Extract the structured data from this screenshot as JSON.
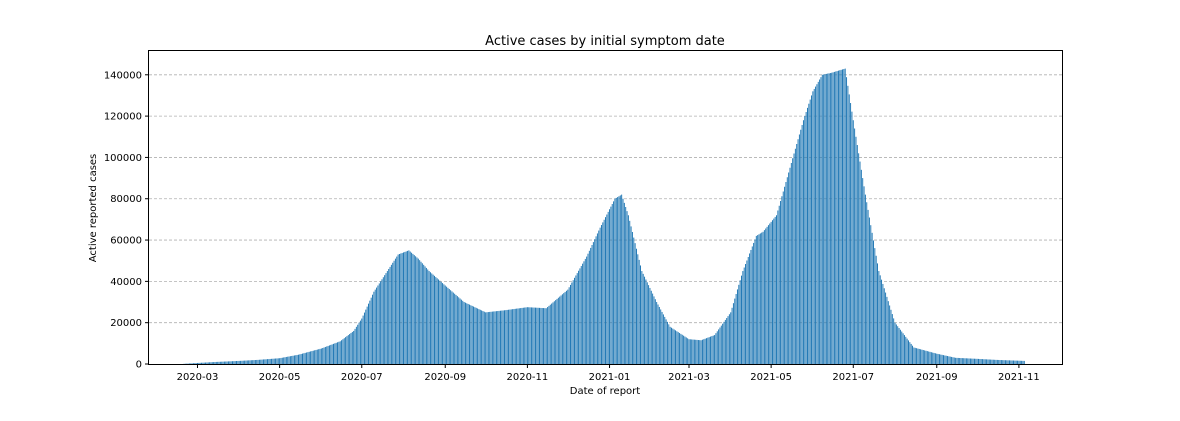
{
  "chart_data": {
    "type": "bar",
    "title": "Active cases by initial symptom date",
    "xlabel": "Date of report",
    "ylabel": "Active reported cases",
    "ylim": [
      0,
      152000
    ],
    "xlim": [
      "2020-01-25",
      "2021-12-03"
    ],
    "grid": "horizontal-dashed",
    "color": "#1f77b4",
    "x_ticks": [
      "2020-03-01",
      "2020-05-01",
      "2020-07-01",
      "2020-09-01",
      "2020-11-01",
      "2021-01-01",
      "2021-03-01",
      "2021-05-01",
      "2021-07-01",
      "2021-09-01",
      "2021-11-01"
    ],
    "x_tick_labels": [
      "2020-03",
      "2020-05",
      "2020-07",
      "2020-09",
      "2020-11",
      "2021-01",
      "2021-03",
      "2021-05",
      "2021-07",
      "2021-09",
      "2021-11"
    ],
    "y_ticks": [
      0,
      20000,
      40000,
      60000,
      80000,
      100000,
      120000,
      140000
    ],
    "y_tick_labels": [
      "0",
      "20000",
      "40000",
      "60000",
      "80000",
      "100000",
      "120000",
      "140000"
    ],
    "series": [
      {
        "x": [
          "2020-02-20",
          "2020-03-01",
          "2020-03-15",
          "2020-04-01",
          "2020-04-15",
          "2020-05-01",
          "2020-05-15",
          "2020-06-01",
          "2020-06-15",
          "2020-06-25",
          "2020-07-01",
          "2020-07-10",
          "2020-07-20",
          "2020-07-28",
          "2020-08-05",
          "2020-08-12",
          "2020-08-20",
          "2020-09-01",
          "2020-09-15",
          "2020-10-01",
          "2020-10-15",
          "2020-11-01",
          "2020-11-15",
          "2020-12-01",
          "2020-12-15",
          "2020-12-25",
          "2021-01-05",
          "2021-01-10",
          "2021-01-15",
          "2021-01-25",
          "2021-02-05",
          "2021-02-15",
          "2021-03-01",
          "2021-03-10",
          "2021-03-20",
          "2021-04-01",
          "2021-04-10",
          "2021-04-20",
          "2021-04-25",
          "2021-05-05",
          "2021-05-15",
          "2021-05-25",
          "2021-06-01",
          "2021-06-08",
          "2021-06-15",
          "2021-06-20",
          "2021-06-25",
          "2021-07-01",
          "2021-07-10",
          "2021-07-20",
          "2021-08-01",
          "2021-08-15",
          "2021-09-01",
          "2021-09-15",
          "2021-10-01",
          "2021-10-15",
          "2021-11-05"
        ],
        "y": [
          100,
          500,
          1000,
          1500,
          2000,
          2800,
          4500,
          7500,
          11000,
          16000,
          22000,
          35000,
          45000,
          53000,
          55000,
          51000,
          45000,
          38000,
          30000,
          25000,
          26000,
          27500,
          27000,
          36000,
          52000,
          66000,
          80000,
          82000,
          72000,
          45000,
          30000,
          18000,
          12000,
          11500,
          14000,
          25000,
          45000,
          62000,
          64000,
          72000,
          95000,
          118000,
          132000,
          140000,
          141000,
          142000,
          143000,
          118000,
          82000,
          45000,
          20000,
          8000,
          5000,
          3000,
          2500,
          2000,
          1500
        ]
      }
    ]
  }
}
